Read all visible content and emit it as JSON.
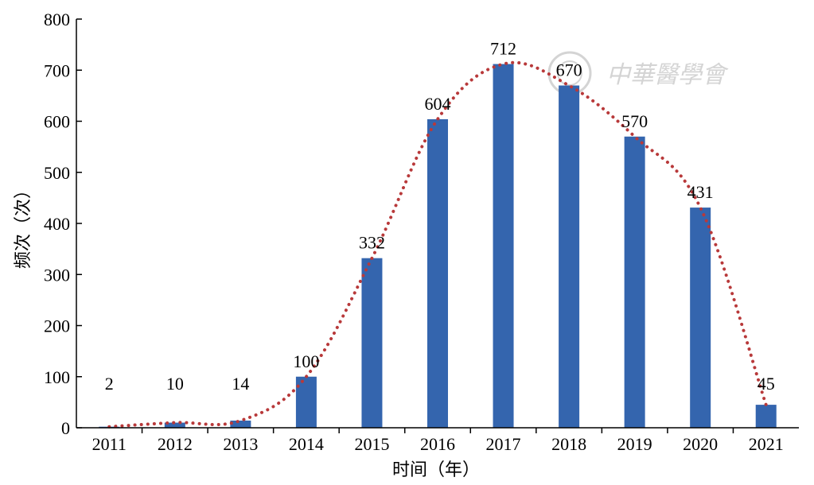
{
  "chart_data": {
    "type": "bar",
    "categories": [
      "2011",
      "2012",
      "2013",
      "2014",
      "2015",
      "2016",
      "2017",
      "2018",
      "2019",
      "2020",
      "2021"
    ],
    "values": [
      2,
      10,
      14,
      100,
      332,
      604,
      712,
      670,
      570,
      431,
      45
    ],
    "data_labels": [
      "2",
      "10",
      "14",
      "100",
      "332",
      "604",
      "712",
      "670",
      "570",
      "431",
      "45"
    ],
    "xlabel": "时间（年）",
    "ylabel": "频次（次）",
    "ylim": [
      0,
      800
    ],
    "yticks": [
      "0",
      "100",
      "200",
      "300",
      "400",
      "500",
      "600",
      "700",
      "800"
    ],
    "grid": false,
    "legend": "none",
    "bar_color": "#3465ae",
    "trend_line": {
      "style": "dotted",
      "color": "#b8393a"
    }
  },
  "watermark": {
    "text": "中華醫學會"
  }
}
